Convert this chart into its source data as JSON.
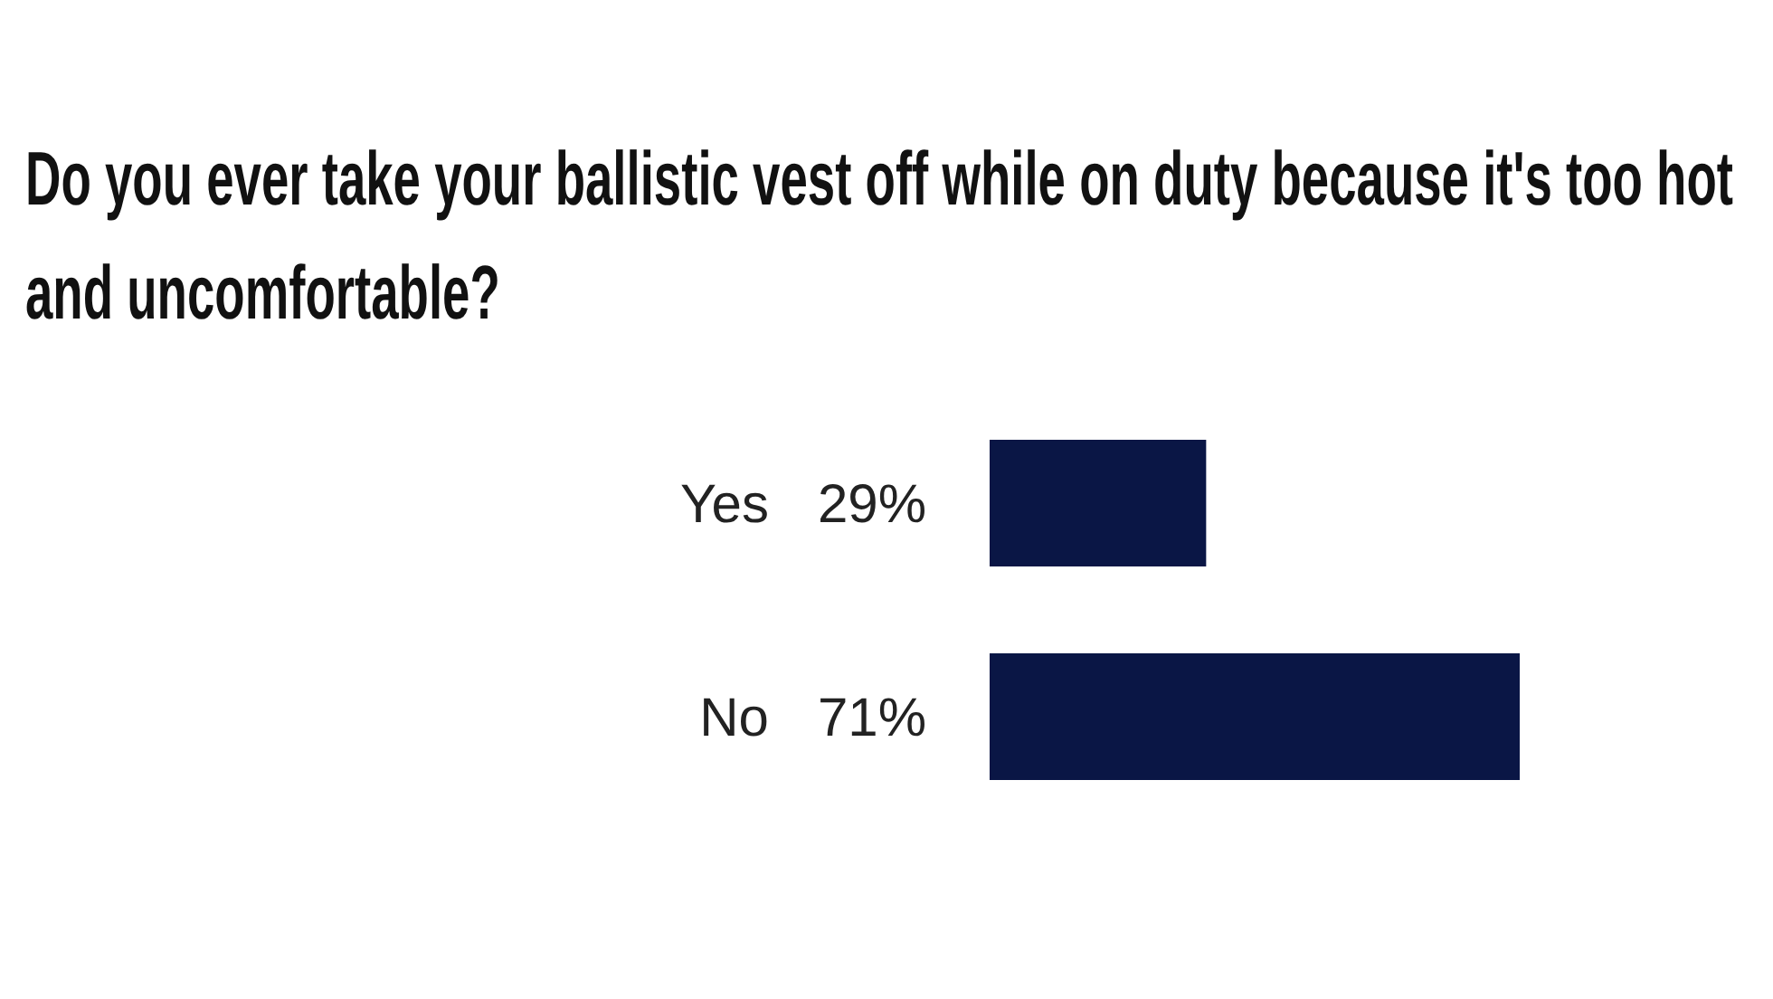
{
  "chart_data": {
    "type": "bar",
    "orientation": "horizontal",
    "title": "Do you ever take your ballistic vest off while on duty because it's too hot and uncomfortable?",
    "categories": [
      "Yes",
      "No"
    ],
    "values": [
      29,
      71
    ],
    "value_labels": [
      "29%",
      "71%"
    ],
    "color": "#0a1645"
  }
}
